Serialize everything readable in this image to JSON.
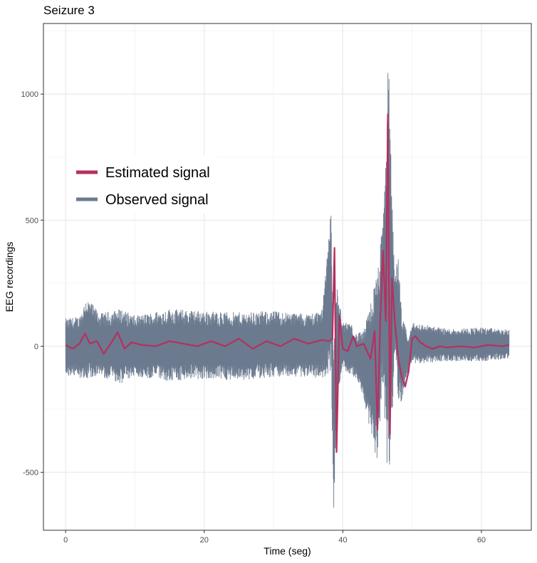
{
  "chart_data": {
    "type": "line",
    "title": "Seizure 3",
    "xlabel": "Time (seg)",
    "ylabel": "EEG recordings",
    "xlim": [
      -3.2,
      67.2
    ],
    "ylim": [
      -730,
      1280
    ],
    "x_ticks": [
      0,
      20,
      40,
      60
    ],
    "x_tick_labels": [
      "0",
      "20",
      "40",
      "60"
    ],
    "y_ticks": [
      -500,
      0,
      500,
      1000
    ],
    "y_tick_labels": [
      "-500",
      "0",
      "500",
      "1000"
    ],
    "grid": true,
    "legend_position": "top-left",
    "series": [
      {
        "name": "Observed signal",
        "color": "#6b7a8f",
        "envelope_x": [
          0,
          2,
          3,
          5,
          8,
          10,
          15,
          20,
          25,
          30,
          35,
          37,
          38.3,
          38.7,
          39.1,
          40,
          41,
          42,
          43,
          44,
          45,
          45.8,
          46.2,
          46.6,
          47,
          47.5,
          48,
          48.5,
          49,
          49.5,
          50,
          55,
          60,
          64
        ],
        "envelope_upper": [
          110,
          120,
          195,
          130,
          150,
          120,
          150,
          140,
          135,
          140,
          130,
          145,
          560,
          -10,
          250,
          90,
          100,
          50,
          60,
          175,
          300,
          500,
          800,
          1190,
          700,
          300,
          360,
          120,
          80,
          30,
          95,
          70,
          75,
          65
        ],
        "envelope_lower": [
          -120,
          -125,
          -130,
          -120,
          -150,
          -120,
          -140,
          -130,
          -135,
          -125,
          -120,
          -130,
          -100,
          -650,
          -250,
          -90,
          -110,
          -130,
          -200,
          -350,
          -480,
          -120,
          -410,
          -560,
          -360,
          -20,
          -210,
          -250,
          -150,
          -90,
          -70,
          -60,
          -60,
          -50
        ]
      },
      {
        "name": "Estimated signal",
        "color": "#b5305f",
        "x": [
          0,
          1,
          2,
          2.8,
          3.5,
          4.5,
          5.5,
          6.5,
          7.5,
          8.5,
          9.5,
          11,
          13,
          15,
          17,
          19,
          21,
          23,
          25,
          27,
          29,
          31,
          33,
          35,
          37,
          38,
          38.5,
          38.8,
          39.1,
          39.5,
          40,
          40.7,
          41.5,
          42,
          43,
          44,
          44.6,
          45,
          45.4,
          45.8,
          46.2,
          46.5,
          46.8,
          47.1,
          47.5,
          48,
          48.5,
          49,
          49.5,
          50,
          50.5,
          51,
          52,
          53,
          54,
          55,
          57,
          59,
          61,
          63,
          64
        ],
        "y": [
          5,
          -10,
          10,
          50,
          10,
          20,
          -30,
          10,
          55,
          -10,
          15,
          5,
          0,
          20,
          10,
          0,
          20,
          0,
          30,
          -10,
          20,
          0,
          30,
          10,
          25,
          20,
          30,
          390,
          -420,
          120,
          -10,
          -20,
          40,
          0,
          10,
          -50,
          60,
          -330,
          100,
          380,
          100,
          920,
          -350,
          270,
          100,
          -50,
          -120,
          -160,
          -100,
          30,
          40,
          20,
          0,
          -10,
          0,
          -5,
          0,
          -5,
          5,
          0,
          5
        ]
      }
    ]
  }
}
